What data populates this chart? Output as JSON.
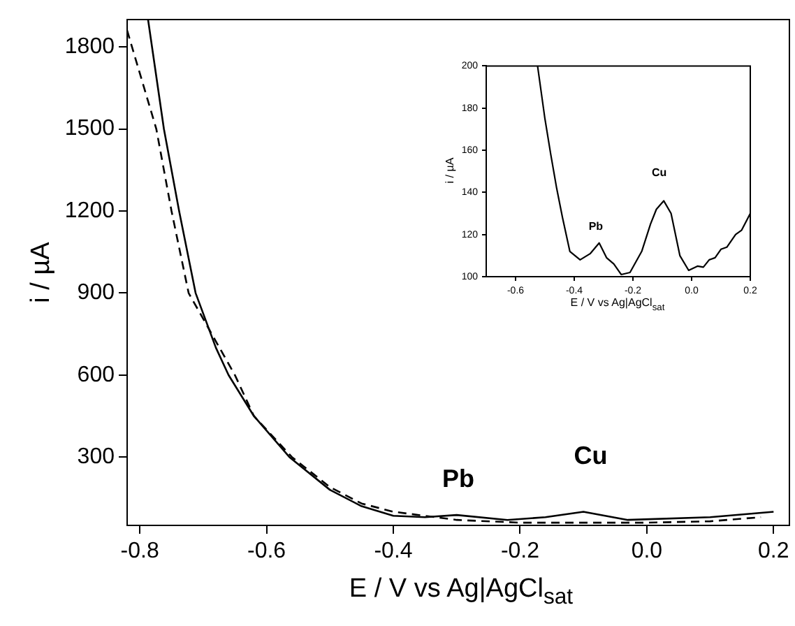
{
  "chart_data": [
    {
      "type": "line",
      "xlabel": "E / V vs Ag|AgCl$_{sat}$",
      "ylabel": "i / µA",
      "marker": "none",
      "xlim": [
        -0.82,
        0.225
      ],
      "ylim": [
        50,
        1900
      ],
      "xticks": [
        -0.8,
        -0.6,
        -0.4,
        -0.2,
        {
          "value": 0,
          "label": "0.0"
        },
        0.2
      ],
      "yticks": [
        300,
        600,
        900,
        1200,
        1500,
        1800
      ],
      "series": [
        {
          "color": "#000000",
          "line_style": "solid",
          "x": [
            -0.787,
            -0.762,
            -0.738,
            -0.712,
            -0.68,
            -0.66,
            -0.62,
            -0.564,
            -0.5,
            -0.45,
            -0.4,
            -0.35,
            -0.3,
            -0.22,
            -0.16,
            -0.1,
            -0.03,
            0.1,
            0.2
          ],
          "values": [
            1900,
            1500,
            1200,
            900,
            700,
            600,
            450,
            300,
            180,
            120,
            85,
            80,
            88,
            70,
            80,
            100,
            70,
            80,
            100
          ]
        },
        {
          "color": "#000000",
          "line_style": "dashed",
          "x": [
            -0.82,
            -0.774,
            -0.75,
            -0.723,
            -0.65,
            -0.62,
            -0.56,
            -0.5,
            -0.45,
            -0.4,
            -0.3,
            -0.2,
            0,
            0.1,
            0.18
          ],
          "values": [
            1860,
            1500,
            1200,
            900,
            600,
            450,
            300,
            190,
            130,
            100,
            70,
            60,
            60,
            65,
            80
          ]
        }
      ],
      "annotations": [
        "Pb",
        "Cu"
      ]
    },
    {
      "type": "line",
      "xlabel": "E / V vs Ag|AgCl$_{sat}$",
      "ylabel": "i / µA",
      "marker": "none",
      "xlim": [
        -0.7,
        0.2
      ],
      "ylim": [
        100,
        200
      ],
      "xticks": [
        -0.6,
        -0.4,
        -0.2,
        {
          "value": 0,
          "label": "0.0"
        },
        0.2
      ],
      "yticks": [
        100,
        120,
        140,
        160,
        180,
        200
      ],
      "series": [
        {
          "color": "#000000",
          "line_style": "solid",
          "x": [
            -0.525,
            -0.5,
            -0.48,
            -0.46,
            -0.44,
            -0.415,
            -0.38,
            -0.345,
            -0.315,
            -0.29,
            -0.265,
            -0.24,
            -0.21,
            -0.17,
            -0.14,
            -0.12,
            -0.095,
            -0.07,
            -0.04,
            -0.01,
            0.02,
            0.04,
            0.06,
            0.08,
            0.1,
            0.12,
            0.15,
            0.17,
            0.2
          ],
          "values": [
            200,
            175,
            158,
            142,
            128,
            112,
            108,
            111,
            116,
            109,
            106,
            101,
            102,
            112,
            125,
            132,
            136,
            130,
            110,
            103,
            105,
            104.5,
            108,
            109,
            113,
            114,
            120,
            122,
            130
          ]
        }
      ],
      "annotations": [
        "Pb",
        "Cu"
      ]
    }
  ]
}
